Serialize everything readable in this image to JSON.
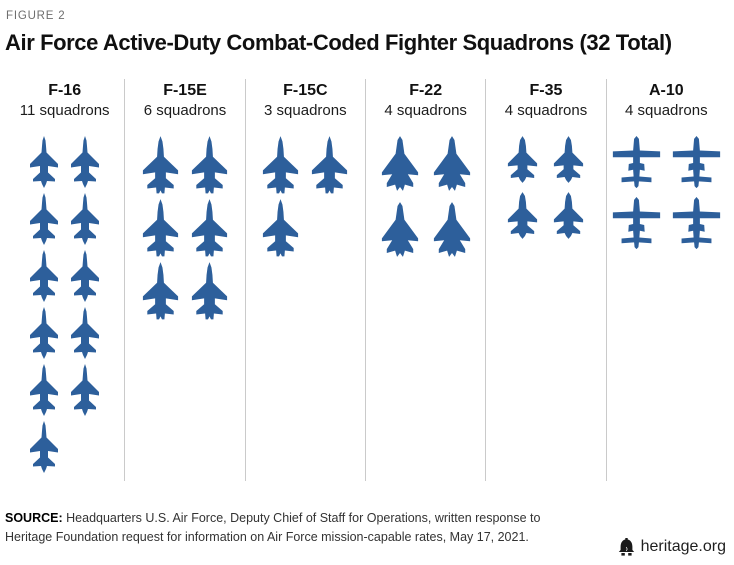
{
  "figure": {
    "label": "FIGURE 2"
  },
  "title": "Air Force Active-Duty Combat-Coded Fighter Squadrons (32 Total)",
  "chart_data": {
    "type": "pictograph",
    "title": "Air Force Active-Duty Combat-Coded Fighter Squadrons (32 Total)",
    "unit": "squadrons",
    "total": 32,
    "icon_color": "#2d5f9b",
    "icons_per_row": 2,
    "categories": [
      "F-16",
      "F-15E",
      "F-15C",
      "F-22",
      "F-35",
      "A-10"
    ],
    "values": [
      11,
      6,
      3,
      4,
      4,
      4
    ],
    "columns": [
      {
        "aircraft": "F-16",
        "squadrons": 11,
        "count_label": "11 squadrons",
        "icon": "f16"
      },
      {
        "aircraft": "F-15E",
        "squadrons": 6,
        "count_label": "6 squadrons",
        "icon": "f15"
      },
      {
        "aircraft": "F-15C",
        "squadrons": 3,
        "count_label": "3 squadrons",
        "icon": "f15"
      },
      {
        "aircraft": "F-22",
        "squadrons": 4,
        "count_label": "4 squadrons",
        "icon": "f22"
      },
      {
        "aircraft": "F-35",
        "squadrons": 4,
        "count_label": "4 squadrons",
        "icon": "f35"
      },
      {
        "aircraft": "A-10",
        "squadrons": 4,
        "count_label": "4 squadrons",
        "icon": "a10"
      }
    ],
    "legend": "none",
    "grid": "off"
  },
  "source": {
    "label": "SOURCE:",
    "text": "Headquarters U.S. Air Force, Deputy Chief of Staff for Operations, written response to Heritage Foundation request for information on Air Force mission-capable rates, May 17, 2021."
  },
  "branding": {
    "site": "heritage.org",
    "logo": "liberty-bell-icon"
  }
}
